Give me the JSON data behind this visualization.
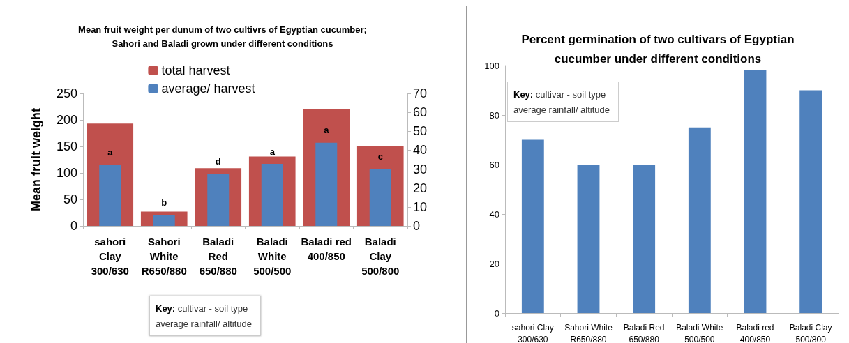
{
  "chart_data": [
    {
      "type": "bar",
      "title": "Mean fruit weight per dunum of two cultivrs of Egyptian cucumber;\nSahori and Baladi grown under different conditions",
      "ylabel": "Mean fruit weight",
      "categories": [
        "sahori\nClay\n300/630",
        "Sahori\nWhite\nR650/880",
        "Baladi\nRed\n650/880",
        "Baladi\nWhite\n500/500",
        "Baladi red\n400/850",
        "Baladi\nClay\n500/800"
      ],
      "series": [
        {
          "name": "total harvest",
          "color": "#c0504d",
          "values": [
            193,
            27,
            109,
            131,
            220,
            150
          ]
        },
        {
          "name": "average/ harvest",
          "color": "#4f81bd",
          "values": [
            115,
            20,
            98,
            117,
            157,
            107
          ]
        }
      ],
      "ylim": [
        0,
        250
      ],
      "yticks": [
        0,
        50,
        100,
        150,
        200,
        250
      ],
      "y2lim": [
        0,
        70
      ],
      "y2ticks": [
        0,
        10,
        20,
        30,
        40,
        50,
        60,
        70
      ],
      "legend": "top",
      "grid": false,
      "annotations": [
        {
          "text": "a",
          "x": "sahori\nClay\n300/630",
          "y": 115
        },
        {
          "text": "b",
          "x": "Sahori\nWhite\nR650/880",
          "y": 20
        },
        {
          "text": "d",
          "x": "Baladi\nRed\n650/880",
          "y": 98
        },
        {
          "text": "a",
          "x": "Baladi\nWhite\n500/500",
          "y": 117
        },
        {
          "text": "a",
          "x": "Baladi red\n400/850",
          "y": 157
        },
        {
          "text": "c",
          "x": "Baladi\nClay\n500/800",
          "y": 107
        },
        "Key: cultivar - soil type\naverage rainfall/ altitude"
      ]
    },
    {
      "type": "bar",
      "title": "Percent germination of two cultivars of Egyptian\ncucumber under different conditions",
      "categories": [
        "sahori Clay\n300/630",
        "Sahori White\nR650/880",
        "Baladi Red\n650/880",
        "Baladi White\n500/500",
        "Baladi red\n400/850",
        "Baladi Clay\n500/800"
      ],
      "values": [
        70,
        60,
        60,
        75,
        98,
        90
      ],
      "color": "#4f81bd",
      "ylim": [
        0,
        100
      ],
      "yticks": [
        0,
        20,
        40,
        60,
        80,
        100
      ],
      "legend": false,
      "grid": false,
      "annotations": [
        "Key: cultivar - soil type\naverage rainfall/ altitude"
      ]
    }
  ]
}
